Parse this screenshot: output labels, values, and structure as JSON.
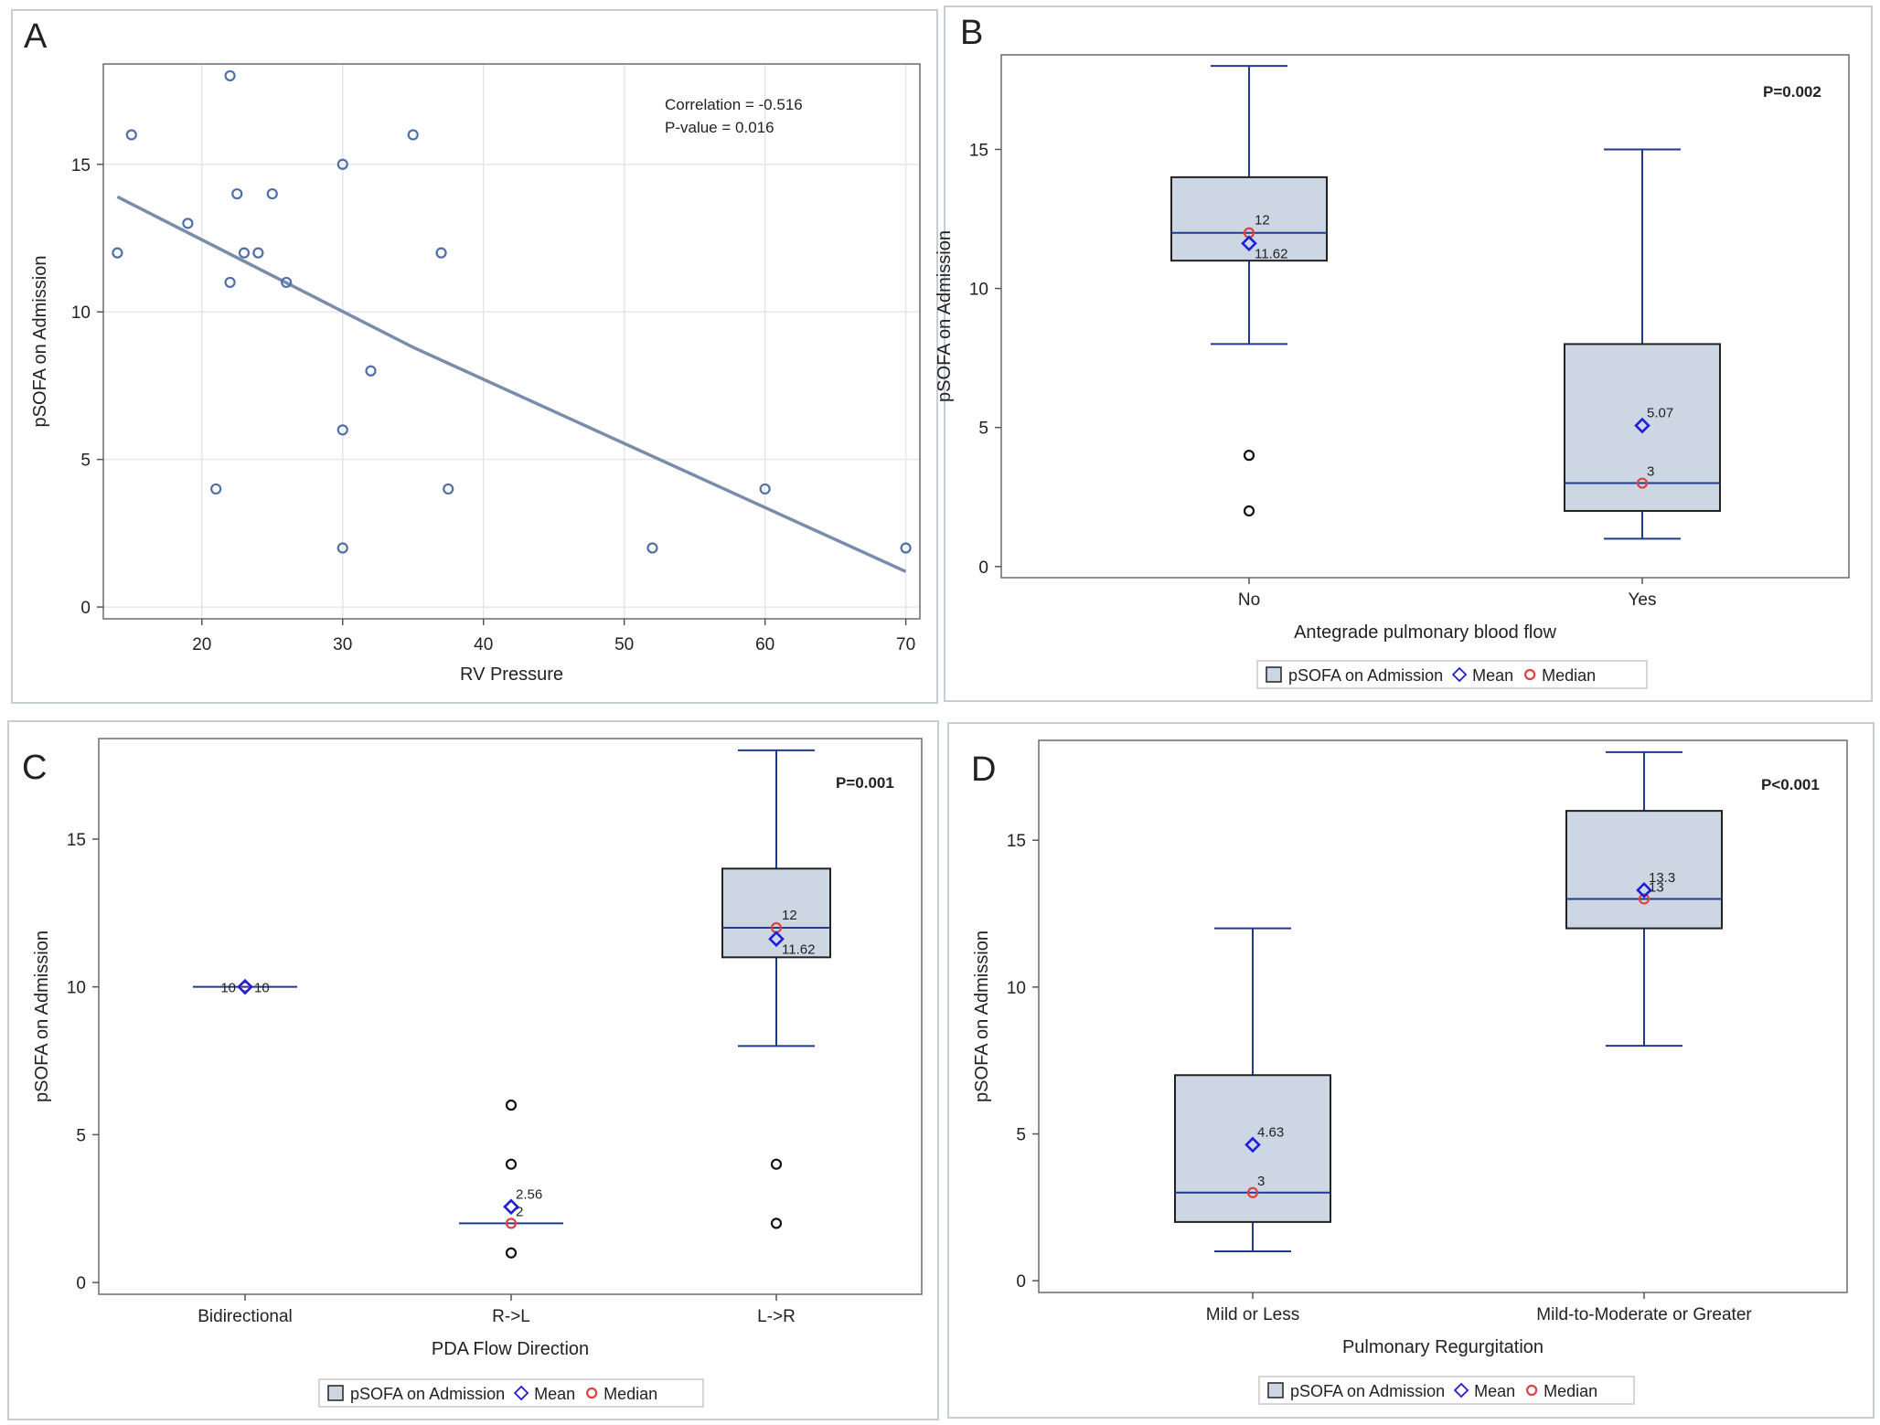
{
  "chart_data": [
    {
      "panel": "A",
      "type": "scatter",
      "xlabel": "RV Pressure",
      "ylabel": "pSOFA on Admission",
      "xlim": [
        13,
        71
      ],
      "ylim": [
        -0.4,
        18.4
      ],
      "xticks": [
        20,
        30,
        40,
        50,
        60,
        70
      ],
      "yticks": [
        0,
        5,
        10,
        15
      ],
      "grid": true,
      "annotations": [
        "Correlation = -0.516",
        "P-value = 0.016"
      ],
      "points": [
        {
          "x": 14,
          "y": 12
        },
        {
          "x": 15,
          "y": 16
        },
        {
          "x": 19,
          "y": 13
        },
        {
          "x": 21,
          "y": 4
        },
        {
          "x": 22,
          "y": 18
        },
        {
          "x": 22,
          "y": 11
        },
        {
          "x": 22.5,
          "y": 14
        },
        {
          "x": 23,
          "y": 12
        },
        {
          "x": 24,
          "y": 12
        },
        {
          "x": 25,
          "y": 14
        },
        {
          "x": 26,
          "y": 11
        },
        {
          "x": 30,
          "y": 15
        },
        {
          "x": 30,
          "y": 6
        },
        {
          "x": 30,
          "y": 2
        },
        {
          "x": 32,
          "y": 8
        },
        {
          "x": 35,
          "y": 16
        },
        {
          "x": 37,
          "y": 12
        },
        {
          "x": 37.5,
          "y": 4
        },
        {
          "x": 52,
          "y": 2
        },
        {
          "x": 60,
          "y": 4
        },
        {
          "x": 70,
          "y": 2
        }
      ],
      "fit_line": [
        {
          "x": 14,
          "y": 13.9
        },
        {
          "x": 35,
          "y": 8.8
        },
        {
          "x": 70,
          "y": 1.2
        }
      ]
    },
    {
      "panel": "B",
      "type": "box",
      "xlabel": "Antegrade pulmonary blood flow",
      "ylabel": "pSOFA on Admission",
      "ylim": [
        -0.4,
        18.4
      ],
      "yticks": [
        0,
        5,
        10,
        15
      ],
      "annotation": "P=0.002",
      "legend": [
        "pSOFA on Admission",
        "Mean",
        "Median"
      ],
      "groups": [
        {
          "label": "No",
          "min": 8,
          "q1": 11,
          "median": 12,
          "q3": 14,
          "max": 18,
          "mean": 11.62,
          "mean_label": "11.62",
          "median_label": "12",
          "outliers": [
            4,
            2
          ]
        },
        {
          "label": "Yes",
          "min": 1,
          "q1": 2,
          "median": 3,
          "q3": 8,
          "max": 15,
          "mean": 5.07,
          "mean_label": "5.07",
          "median_label": "3",
          "outliers": []
        }
      ]
    },
    {
      "panel": "C",
      "type": "box",
      "xlabel": "PDA Flow Direction",
      "ylabel": "pSOFA on Admission",
      "ylim": [
        -0.4,
        18.4
      ],
      "yticks": [
        0,
        5,
        10,
        15
      ],
      "annotation": "P=0.001",
      "legend": [
        "pSOFA on Admission",
        "Mean",
        "Median"
      ],
      "groups": [
        {
          "label": "Bidirectional",
          "min": 10,
          "q1": 10,
          "median": 10,
          "q3": 10,
          "max": 10,
          "mean": 10,
          "mean_label": "10",
          "median_label": "10",
          "outliers": []
        },
        {
          "label": "R->L",
          "min": 2,
          "q1": 2,
          "median": 2,
          "q3": 2,
          "max": 2,
          "mean": 2.56,
          "mean_label": "2.56",
          "median_label": "2",
          "outliers": [
            6,
            4,
            1
          ]
        },
        {
          "label": "L->R",
          "min": 8,
          "q1": 11,
          "median": 12,
          "q3": 14,
          "max": 18,
          "mean": 11.62,
          "mean_label": "11.62",
          "median_label": "12",
          "outliers": [
            4,
            2
          ]
        }
      ]
    },
    {
      "panel": "D",
      "type": "box",
      "xlabel": "Pulmonary Regurgitation",
      "ylabel": "pSOFA on Admission",
      "ylim": [
        -0.4,
        18.4
      ],
      "yticks": [
        0,
        5,
        10,
        15
      ],
      "annotation": "P<0.001",
      "legend": [
        "pSOFA on Admission",
        "Mean",
        "Median"
      ],
      "groups": [
        {
          "label": "Mild or Less",
          "min": 1,
          "q1": 2,
          "median": 3,
          "q3": 7,
          "max": 12,
          "mean": 4.63,
          "mean_label": "4.63",
          "median_label": "3",
          "outliers": []
        },
        {
          "label": "Mild-to-Moderate or Greater",
          "min": 8,
          "q1": 12,
          "median": 13,
          "q3": 16,
          "max": 18,
          "mean": 13.3,
          "mean_label": "13.3",
          "median_label": "13",
          "outliers": []
        }
      ]
    }
  ],
  "colors": {
    "box_fill": "#cdd6e3",
    "box_line": "#203a8c",
    "mean": "#1f1fd6",
    "median": "#e04040",
    "scatter": "#4f6fa8",
    "fit": "#7a8cab",
    "grid": "#e6e6e6"
  }
}
